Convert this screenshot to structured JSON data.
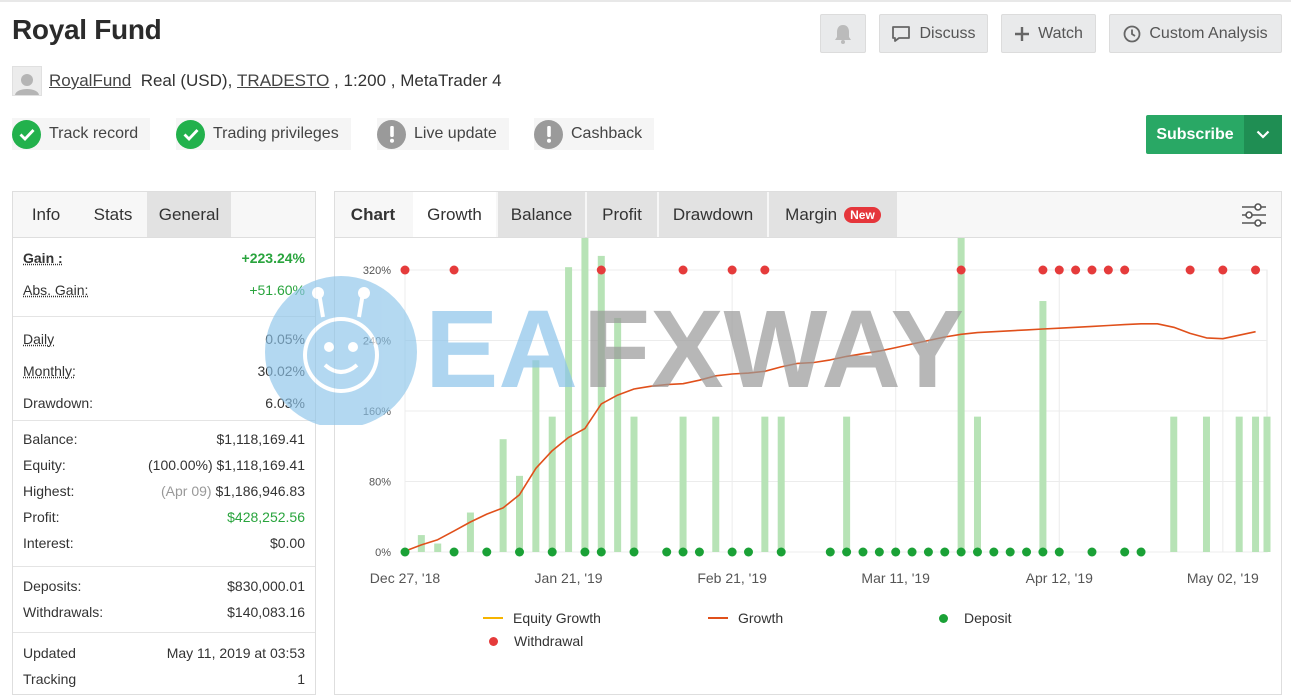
{
  "header": {
    "title": "Royal Fund",
    "buttons": {
      "discuss": "Discuss",
      "watch": "Watch",
      "custom_analysis": "Custom Analysis"
    }
  },
  "account": {
    "name": "RoyalFund",
    "type_prefix": "Real (USD),",
    "broker": "TRADESTO",
    "suffix": ", 1:200 , MetaTrader 4"
  },
  "badges": [
    {
      "label": "Track record",
      "status": "ok"
    },
    {
      "label": "Trading privileges",
      "status": "ok"
    },
    {
      "label": "Live update",
      "status": "warn"
    },
    {
      "label": "Cashback",
      "status": "warn"
    }
  ],
  "subscribe": {
    "label": "Subscribe"
  },
  "left_tabs": {
    "info": "Info",
    "stats": "Stats",
    "general": "General"
  },
  "stats": {
    "gain": {
      "label": "Gain :",
      "value": "+223.24%"
    },
    "abs_gain": {
      "label": "Abs. Gain:",
      "value": "+51.60%"
    },
    "daily": {
      "label": "Daily",
      "value": "0.05%"
    },
    "monthly": {
      "label": "Monthly:",
      "value": "30.02%"
    },
    "drawdown": {
      "label": "Drawdown:",
      "value": "6.03%"
    },
    "balance": {
      "label": "Balance:",
      "value": "$1,118,169.41"
    },
    "equity": {
      "label": "Equity:",
      "note": "(100.00%)",
      "value": "$1,118,169.41"
    },
    "highest": {
      "label": "Highest:",
      "note": "(Apr 09)",
      "value": "$1,186,946.83"
    },
    "profit": {
      "label": "Profit:",
      "value": "$428,252.56"
    },
    "interest": {
      "label": "Interest:",
      "value": "$0.00"
    },
    "deposits": {
      "label": "Deposits:",
      "value": "$830,000.01"
    },
    "withdrawals": {
      "label": "Withdrawals:",
      "value": "$140,083.16"
    },
    "updated": {
      "label": "Updated",
      "value": "May 11, 2019 at 03:53"
    },
    "tracking": {
      "label": "Tracking",
      "value": "1"
    }
  },
  "chart_tabs": {
    "chart": "Chart",
    "growth": "Growth",
    "balance": "Balance",
    "profit": "Profit",
    "drawdown": "Drawdown",
    "margin": "Margin",
    "new_badge": "New"
  },
  "watermark": {
    "text": "EAFXWAY"
  },
  "colors": {
    "green": "#29a865",
    "red": "#e5363b",
    "growth_line": "#e0501b",
    "bar": "#b7e3b6",
    "deposit": "#1aa136",
    "withdrawal": "#e53b3b",
    "equity": "#f6b400"
  },
  "chart_data": {
    "type": "line",
    "y_tick_labels": [
      "0%",
      "80%",
      "160%",
      "240%",
      "320%"
    ],
    "ylim": [
      0,
      320
    ],
    "x_tick_labels": [
      "Dec 27, '18",
      "Jan 21, '19",
      "Feb 21, '19",
      "Mar 11, '19",
      "Apr 12, '19",
      "May 02, '19"
    ],
    "x_tick_index": [
      0,
      10,
      20,
      30,
      40,
      50
    ],
    "grid": true,
    "legend_position": "bottom",
    "series": [
      {
        "name": "Equity Growth",
        "type": "line",
        "values": []
      },
      {
        "name": "Growth",
        "type": "line",
        "values": [
          [
            0,
            1
          ],
          [
            1,
            8
          ],
          [
            2,
            14
          ],
          [
            3,
            24
          ],
          [
            4,
            34
          ],
          [
            5,
            43
          ],
          [
            6,
            50
          ],
          [
            7,
            65
          ],
          [
            8,
            95
          ],
          [
            9,
            115
          ],
          [
            10,
            130
          ],
          [
            11,
            140
          ],
          [
            12,
            168
          ],
          [
            13,
            178
          ],
          [
            14,
            185
          ],
          [
            15,
            188
          ],
          [
            16,
            190
          ],
          [
            17,
            191
          ],
          [
            18,
            195
          ],
          [
            19,
            200
          ],
          [
            20,
            202
          ],
          [
            21,
            203
          ],
          [
            22,
            205
          ],
          [
            23,
            210
          ],
          [
            24,
            214
          ],
          [
            25,
            215
          ],
          [
            26,
            218
          ],
          [
            27,
            222
          ],
          [
            28,
            225
          ],
          [
            29,
            228
          ],
          [
            30,
            232
          ],
          [
            31,
            236
          ],
          [
            32,
            240
          ],
          [
            33,
            244
          ],
          [
            34,
            247
          ],
          [
            35,
            249
          ],
          [
            36,
            250
          ],
          [
            37,
            251
          ],
          [
            38,
            252
          ],
          [
            39,
            253
          ],
          [
            40,
            254
          ],
          [
            41,
            255
          ],
          [
            42,
            256
          ],
          [
            43,
            257
          ],
          [
            44,
            258
          ],
          [
            45,
            259
          ],
          [
            46,
            259
          ],
          [
            47,
            255
          ],
          [
            48,
            248
          ],
          [
            49,
            243
          ],
          [
            50,
            242
          ],
          [
            51,
            246
          ],
          [
            52,
            250
          ]
        ]
      },
      {
        "name": "Deposit",
        "type": "scatter",
        "values": [
          0,
          3,
          5,
          7,
          9,
          11,
          12,
          14,
          16,
          17,
          18,
          20,
          21,
          23,
          26,
          27,
          28,
          29,
          30,
          31,
          32,
          33,
          34,
          35,
          36,
          37,
          38,
          39,
          40,
          42,
          44,
          45
        ]
      },
      {
        "name": "Withdrawal",
        "type": "scatter",
        "values": [
          0,
          3,
          12,
          17,
          20,
          22,
          34,
          39,
          40,
          41,
          42,
          43,
          44,
          48,
          50,
          52
        ]
      }
    ],
    "bars": {
      "name": "Profit",
      "unit": "% of axis",
      "values": [
        [
          1,
          6
        ],
        [
          2,
          3
        ],
        [
          4,
          14
        ],
        [
          6,
          40
        ],
        [
          7,
          27
        ],
        [
          8,
          68
        ],
        [
          9,
          48
        ],
        [
          10,
          101
        ],
        [
          11,
          145
        ],
        [
          12,
          105
        ],
        [
          13,
          83
        ],
        [
          14,
          48
        ],
        [
          17,
          48
        ],
        [
          19,
          48
        ],
        [
          22,
          48
        ],
        [
          23,
          48
        ],
        [
          27,
          48
        ],
        [
          34,
          137
        ],
        [
          35,
          48
        ],
        [
          39,
          89
        ],
        [
          47,
          48
        ],
        [
          49,
          48
        ],
        [
          51,
          48
        ],
        [
          52,
          48
        ],
        [
          52.7,
          48
        ]
      ]
    }
  }
}
